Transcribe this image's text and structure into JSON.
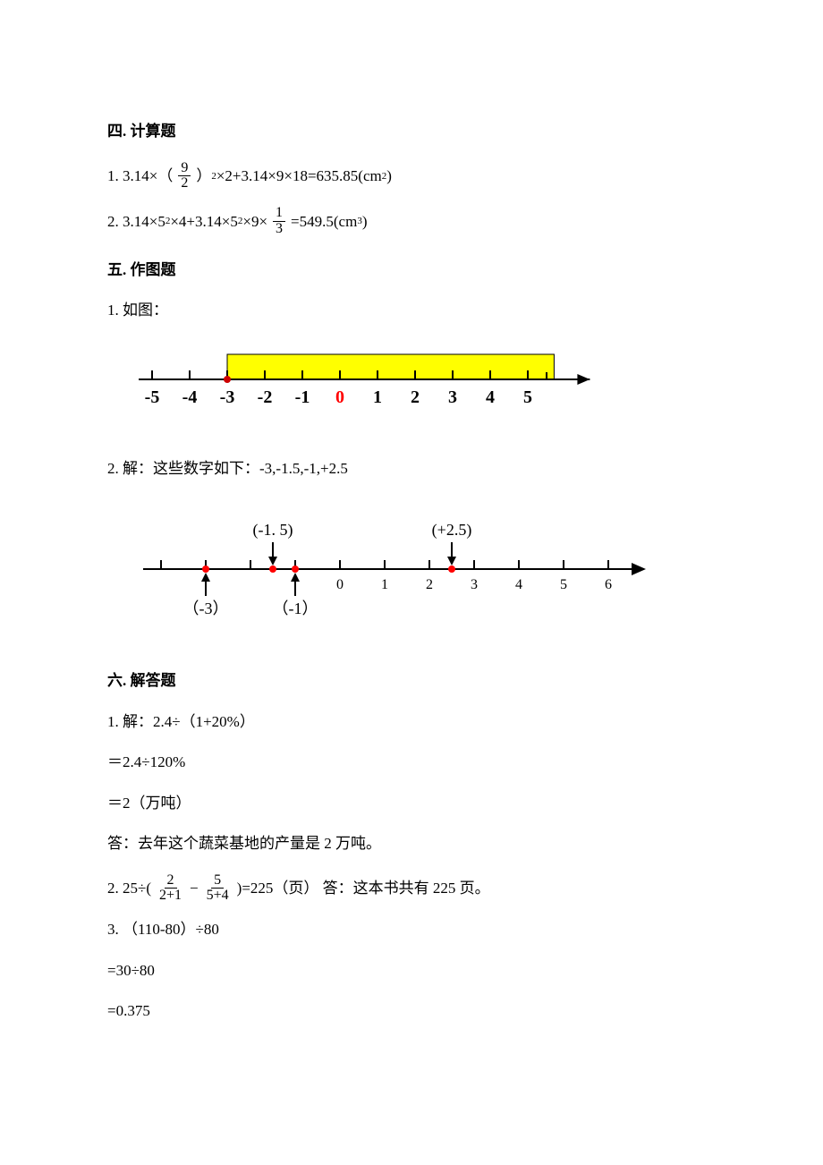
{
  "sections": {
    "s4": {
      "heading": "四. 计算题",
      "q1": {
        "pre": "1. 3.14×（",
        "frac_num": "9",
        "frac_den": "2",
        "mid": "）",
        "exp": "2",
        "post": "×2+3.14×9×18=635.85(cm",
        "unit_exp": "2",
        "tail": ")"
      },
      "q2": {
        "pre1": "2. 3.14×5",
        "e1": "2",
        "pre2": "×4+3.14×5",
        "e2": "2",
        "pre3": "×9×",
        "frac_num": "1",
        "frac_den": "3",
        "post": "=549.5(cm",
        "unit_exp": "3",
        "tail": ")"
      }
    },
    "s5": {
      "heading": "五. 作图题",
      "q1_intro": "1. 如图：",
      "fig1": {
        "ticks": [
          "-5",
          "-4",
          "-3",
          "-2",
          "-1",
          "0",
          "1",
          "2",
          "3",
          "4",
          "5"
        ],
        "highlight_start": -3,
        "highlight_end": 5.7,
        "highlight_color": "#ffff00",
        "line_color": "#000000",
        "zero_color": "#ff0000",
        "dot_color": "#cc0000",
        "tick_fontsize": 20,
        "tick_fontweight": "bold"
      },
      "q2_intro": "2. 解：这些数字如下：-3,-1.5,-1,+2.5",
      "fig2": {
        "ticks": [
          "0",
          "1",
          "2",
          "3",
          "4",
          "5",
          "6"
        ],
        "range_start": -4,
        "range_end": 6.8,
        "line_color": "#000000",
        "dot_color": "#ff0000",
        "label_color": "#000000",
        "tick_fontsize": 16,
        "points": [
          {
            "x": -3,
            "label": "（-3）",
            "pos": "below"
          },
          {
            "x": -1.5,
            "label": "(-1. 5)",
            "pos": "above"
          },
          {
            "x": -1,
            "label": "（-1）",
            "pos": "below"
          },
          {
            "x": 2.5,
            "label": "(+2.5)",
            "pos": "above"
          }
        ]
      }
    },
    "s6": {
      "heading": "六. 解答题",
      "q1": {
        "l1": "1. 解：2.4÷（1+20%）",
        "l2": "＝2.4÷120%",
        "l3": "＝2（万吨）",
        "l4": "答：去年这个蔬菜基地的产量是 2 万吨。"
      },
      "q2": {
        "pre": "2. 25÷(",
        "f1_num": "2",
        "f1_den": "2+1",
        "mid1": " − ",
        "f2_num": "5",
        "f2_den": "5+4",
        "post": ")=225（页）    答：这本书共有 225 页。"
      },
      "q3": {
        "l1": "3. （110-80）÷80",
        "l2": "=30÷80",
        "l3": "=0.375"
      }
    }
  }
}
